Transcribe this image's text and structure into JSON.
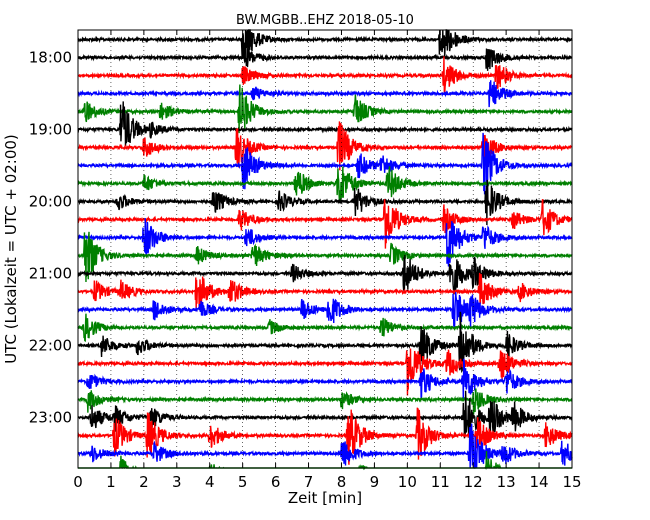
{
  "chart_data": {
    "type": "line",
    "title": "BW.MGBB..EHZ 2018-05-10",
    "xlabel": "Zeit  [min]",
    "ylabel": "UTC (Lokalzeit = UTC + 02:00)",
    "xlim": [
      0,
      15
    ],
    "x_ticks": [
      "0",
      "1",
      "2",
      "3",
      "4",
      "5",
      "6",
      "7",
      "8",
      "9",
      "10",
      "11",
      "12",
      "13",
      "14",
      "15"
    ],
    "y_tick_labels": [
      "18:00",
      "19:00",
      "20:00",
      "21:00",
      "22:00",
      "23:00"
    ],
    "grid": true,
    "trace_minutes": 15,
    "trace_start": "17:45",
    "trace_end": "23:45",
    "trace_colors": [
      "#000000",
      "#ff0000",
      "#0000ff",
      "#008000"
    ],
    "traces": [
      {
        "start": "17:45",
        "color": "#000000",
        "events": [
          [
            5.0,
            2.8
          ],
          [
            11.0,
            3.2
          ]
        ]
      },
      {
        "start": "18:00",
        "color": "#000000",
        "events": [
          [
            12.4,
            1.5
          ],
          [
            5.1,
            1.0
          ]
        ]
      },
      {
        "start": "18:15",
        "color": "#ff0000",
        "events": [
          [
            11.1,
            2.0
          ],
          [
            12.7,
            1.6
          ],
          [
            5.0,
            1.0
          ]
        ]
      },
      {
        "start": "18:30",
        "color": "#0000ff",
        "events": [
          [
            12.5,
            1.8
          ],
          [
            5.3,
            0.8
          ]
        ]
      },
      {
        "start": "18:45",
        "color": "#008000",
        "events": [
          [
            4.9,
            3.0
          ],
          [
            8.4,
            1.8
          ],
          [
            0.2,
            1.2
          ],
          [
            2.5,
            1.0
          ]
        ]
      },
      {
        "start": "19:00",
        "color": "#000000",
        "events": [
          [
            1.3,
            3.5
          ],
          [
            2.2,
            0.6
          ]
        ]
      },
      {
        "start": "19:15",
        "color": "#ff0000",
        "events": [
          [
            7.9,
            3.2
          ],
          [
            4.8,
            2.5
          ],
          [
            12.3,
            1.8
          ],
          [
            2.0,
            1.2
          ]
        ]
      },
      {
        "start": "19:30",
        "color": "#0000ff",
        "events": [
          [
            12.3,
            3.5
          ],
          [
            5.0,
            2.8
          ],
          [
            8.5,
            1.5
          ],
          [
            9.2,
            1.2
          ]
        ]
      },
      {
        "start": "19:45",
        "color": "#008000",
        "events": [
          [
            7.9,
            2.8
          ],
          [
            6.6,
            1.8
          ],
          [
            9.4,
            2.0
          ],
          [
            2.0,
            1.0
          ]
        ]
      },
      {
        "start": "20:00",
        "color": "#000000",
        "events": [
          [
            12.4,
            2.5
          ],
          [
            8.4,
            1.8
          ],
          [
            4.1,
            1.5
          ],
          [
            6.1,
            1.2
          ],
          [
            1.2,
            1.0
          ]
        ]
      },
      {
        "start": "20:15",
        "color": "#ff0000",
        "events": [
          [
            9.3,
            3.5
          ],
          [
            14.1,
            2.0
          ],
          [
            11.1,
            1.5
          ],
          [
            4.9,
            1.2
          ],
          [
            13.2,
            1.0
          ]
        ]
      },
      {
        "start": "20:30",
        "color": "#0000ff",
        "events": [
          [
            11.2,
            3.5
          ],
          [
            2.0,
            2.5
          ],
          [
            12.3,
            1.5
          ],
          [
            5.1,
            1.2
          ]
        ]
      },
      {
        "start": "20:45",
        "color": "#008000",
        "events": [
          [
            0.2,
            3.5
          ],
          [
            5.3,
            1.5
          ],
          [
            3.6,
            1.0
          ],
          [
            9.5,
            1.2
          ]
        ]
      },
      {
        "start": "21:00",
        "color": "#000000",
        "events": [
          [
            11.3,
            2.8
          ],
          [
            9.9,
            2.5
          ],
          [
            12.0,
            1.5
          ],
          [
            6.5,
            1.0
          ]
        ]
      },
      {
        "start": "21:15",
        "color": "#ff0000",
        "events": [
          [
            3.6,
            2.5
          ],
          [
            12.2,
            2.0
          ],
          [
            4.6,
            1.5
          ],
          [
            1.3,
            1.0
          ],
          [
            13.4,
            1.0
          ],
          [
            0.5,
            1.2
          ]
        ]
      },
      {
        "start": "21:30",
        "color": "#0000ff",
        "events": [
          [
            11.4,
            2.5
          ],
          [
            7.6,
            2.0
          ],
          [
            2.3,
            1.2
          ],
          [
            6.8,
            1.2
          ],
          [
            11.9,
            1.5
          ],
          [
            3.7,
            1.0
          ]
        ]
      },
      {
        "start": "21:45",
        "color": "#008000",
        "events": [
          [
            0.2,
            1.5
          ],
          [
            9.2,
            1.2
          ],
          [
            5.8,
            0.8
          ]
        ]
      },
      {
        "start": "22:00",
        "color": "#000000",
        "events": [
          [
            10.4,
            2.5
          ],
          [
            11.6,
            3.5
          ],
          [
            0.7,
            1.2
          ],
          [
            13.0,
            1.5
          ],
          [
            1.8,
            1.0
          ]
        ]
      },
      {
        "start": "22:15",
        "color": "#ff0000",
        "events": [
          [
            10.0,
            3.5
          ],
          [
            12.8,
            2.0
          ],
          [
            11.2,
            1.5
          ]
        ]
      },
      {
        "start": "22:30",
        "color": "#0000ff",
        "events": [
          [
            10.4,
            1.8
          ],
          [
            11.7,
            2.5
          ],
          [
            13.0,
            1.5
          ],
          [
            0.3,
            1.0
          ]
        ]
      },
      {
        "start": "22:45",
        "color": "#008000",
        "events": [
          [
            0.3,
            1.2
          ],
          [
            8.0,
            1.0
          ],
          [
            12.0,
            1.5
          ]
        ]
      },
      {
        "start": "23:00",
        "color": "#000000",
        "events": [
          [
            11.7,
            3.5
          ],
          [
            12.5,
            2.2
          ],
          [
            13.2,
            1.6
          ],
          [
            0.4,
            1.5
          ],
          [
            1.1,
            1.2
          ],
          [
            2.2,
            1.2
          ]
        ]
      },
      {
        "start": "23:15",
        "color": "#ff0000",
        "events": [
          [
            8.2,
            3.5
          ],
          [
            10.3,
            3.0
          ],
          [
            1.1,
            2.2
          ],
          [
            2.1,
            2.5
          ],
          [
            12.1,
            2.0
          ],
          [
            4.0,
            1.5
          ],
          [
            14.2,
            1.5
          ]
        ]
      },
      {
        "start": "23:30",
        "color": "#0000ff",
        "events": [
          [
            11.9,
            3.5
          ],
          [
            8.0,
            1.8
          ],
          [
            14.7,
            1.5
          ],
          [
            2.3,
            1.2
          ],
          [
            12.9,
            1.2
          ],
          [
            0.4,
            1.0
          ]
        ]
      },
      {
        "start": "23:45",
        "color": "#008000",
        "events": [
          [
            12.4,
            2.0
          ],
          [
            1.3,
            1.5
          ],
          [
            4.0,
            1.0
          ],
          [
            8.5,
            1.0
          ]
        ]
      }
    ]
  }
}
